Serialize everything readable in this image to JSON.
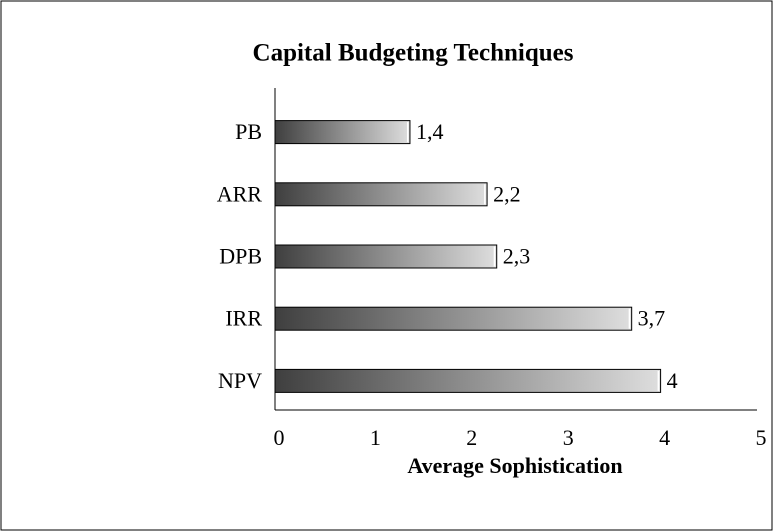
{
  "chart_data": {
    "type": "bar",
    "orientation": "horizontal",
    "title": "Capital Budgeting Techniques",
    "x_label": "Average Sophistication",
    "categories": [
      "PB",
      "ARR",
      "DPB",
      "IRR",
      "NPV"
    ],
    "values": [
      1.4,
      2.2,
      2.3,
      3.7,
      4
    ],
    "value_labels": [
      "1,4",
      "2,2",
      "2,3",
      "3,7",
      "4"
    ],
    "xlim": [
      0,
      5
    ],
    "xticks": [
      0,
      1,
      2,
      3,
      4,
      5
    ]
  }
}
